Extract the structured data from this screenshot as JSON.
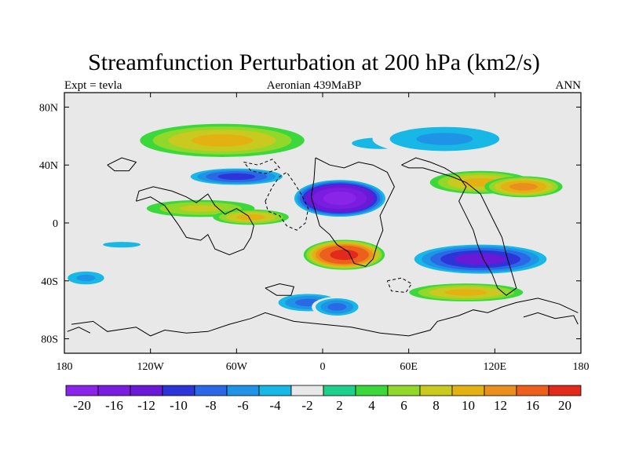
{
  "title": "Streamfunction Perturbation at 200 hPa (km2/s)",
  "subtitle_left": "Expt = tevla",
  "subtitle_center": "Aeronian 439MaBP",
  "subtitle_right": "ANN",
  "map": {
    "lon_range": [
      -180,
      180
    ],
    "lat_range": [
      -90,
      90
    ],
    "background_color": "#e8e8e8",
    "x_ticks": [
      {
        "value": -180,
        "label": "180"
      },
      {
        "value": -120,
        "label": "120W"
      },
      {
        "value": -60,
        "label": "60W"
      },
      {
        "value": 0,
        "label": "0"
      },
      {
        "value": 60,
        "label": "60E"
      },
      {
        "value": 120,
        "label": "120E"
      },
      {
        "value": 180,
        "label": "180"
      }
    ],
    "y_ticks": [
      {
        "value": 80,
        "label": "80N"
      },
      {
        "value": 40,
        "label": "40N"
      },
      {
        "value": 0,
        "label": "0"
      },
      {
        "value": -40,
        "label": "40S"
      },
      {
        "value": -80,
        "label": "80S"
      }
    ],
    "anomalies": [
      {
        "lon": -70,
        "lat": 57,
        "rx": 65,
        "ry": 13,
        "value": 8
      },
      {
        "lon": 40,
        "lat": 55,
        "rx": 60,
        "ry": 12,
        "value": -4
      },
      {
        "lon": 85,
        "lat": 58,
        "rx": 60,
        "ry": 13,
        "value": -6
      },
      {
        "lon": -60,
        "lat": 32,
        "rx": 40,
        "ry": 7,
        "value": -10
      },
      {
        "lon": 12,
        "lat": 17,
        "rx": 35,
        "ry": 14,
        "value": -20
      },
      {
        "lon": 110,
        "lat": 28,
        "rx": 40,
        "ry": 9,
        "value": 8
      },
      {
        "lon": 140,
        "lat": 25,
        "rx": 30,
        "ry": 8,
        "value": 10
      },
      {
        "lon": -85,
        "lat": 10,
        "rx": 45,
        "ry": 7,
        "value": 6
      },
      {
        "lon": -50,
        "lat": 4,
        "rx": 30,
        "ry": 6,
        "value": 8
      },
      {
        "lon": 15,
        "lat": -22,
        "rx": 30,
        "ry": 11,
        "value": 16
      },
      {
        "lon": -140,
        "lat": -15,
        "rx": 40,
        "ry": 6,
        "value": -4
      },
      {
        "lon": 110,
        "lat": -25,
        "rx": 55,
        "ry": 12,
        "value": -12
      },
      {
        "lon": -165,
        "lat": -38,
        "rx": 20,
        "ry": 7,
        "value": -6
      },
      {
        "lon": 100,
        "lat": -48,
        "rx": 45,
        "ry": 7,
        "value": 8
      },
      {
        "lon": -10,
        "lat": -55,
        "rx": 28,
        "ry": 8,
        "value": -8
      },
      {
        "lon": 10,
        "lat": -58,
        "rx": 20,
        "ry": 8,
        "value": -8
      }
    ],
    "coastlines": [
      [
        [
          -175,
          -70
        ],
        [
          -160,
          -68
        ],
        [
          -150,
          -75
        ],
        [
          -130,
          -72
        ],
        [
          -120,
          -78
        ],
        [
          -110,
          -74
        ],
        [
          -95,
          -76
        ],
        [
          -80,
          -75
        ],
        [
          -65,
          -70
        ],
        [
          -50,
          -66
        ],
        [
          -40,
          -62
        ],
        [
          -20,
          -68
        ],
        [
          0,
          -70
        ],
        [
          20,
          -72
        ],
        [
          40,
          -76
        ],
        [
          60,
          -78
        ],
        [
          75,
          -74
        ],
        [
          80,
          -68
        ],
        [
          95,
          -64
        ],
        [
          105,
          -60
        ],
        [
          115,
          -62
        ],
        [
          125,
          -58
        ],
        [
          135,
          -55
        ],
        [
          150,
          -52
        ],
        [
          165,
          -56
        ],
        [
          178,
          -62
        ]
      ],
      [
        [
          -130,
          15
        ],
        [
          -120,
          18
        ],
        [
          -110,
          12
        ],
        [
          -105,
          5
        ],
        [
          -100,
          -2
        ],
        [
          -95,
          -10
        ],
        [
          -85,
          -12
        ],
        [
          -80,
          -8
        ],
        [
          -75,
          -18
        ],
        [
          -65,
          -22
        ],
        [
          -55,
          -18
        ],
        [
          -50,
          -10
        ],
        [
          -48,
          -2
        ],
        [
          -52,
          5
        ],
        [
          -60,
          10
        ],
        [
          -68,
          6
        ],
        [
          -75,
          12
        ],
        [
          -80,
          20
        ],
        [
          -88,
          14
        ],
        [
          -95,
          18
        ],
        [
          -105,
          22
        ],
        [
          -118,
          25
        ],
        [
          -128,
          22
        ],
        [
          -130,
          15
        ]
      ],
      [
        [
          -40,
          15
        ],
        [
          -35,
          25
        ],
        [
          -30,
          32
        ],
        [
          -25,
          35
        ],
        [
          -20,
          28
        ],
        [
          -15,
          20
        ],
        [
          -10,
          10
        ],
        [
          -12,
          0
        ],
        [
          -18,
          -5
        ],
        [
          -25,
          -2
        ],
        [
          -30,
          5
        ],
        [
          -38,
          8
        ],
        [
          -40,
          15
        ]
      ],
      [
        [
          -5,
          45
        ],
        [
          5,
          40
        ],
        [
          15,
          38
        ],
        [
          25,
          42
        ],
        [
          35,
          40
        ],
        [
          45,
          35
        ],
        [
          50,
          25
        ],
        [
          45,
          15
        ],
        [
          40,
          5
        ],
        [
          42,
          -5
        ],
        [
          38,
          -15
        ],
        [
          35,
          -25
        ],
        [
          30,
          -30
        ],
        [
          22,
          -28
        ],
        [
          18,
          -20
        ],
        [
          10,
          -15
        ],
        [
          5,
          -8
        ],
        [
          -2,
          -2
        ],
        [
          -5,
          8
        ],
        [
          -8,
          18
        ],
        [
          -6,
          30
        ],
        [
          -5,
          45
        ]
      ],
      [
        [
          55,
          40
        ],
        [
          65,
          45
        ],
        [
          75,
          42
        ],
        [
          85,
          38
        ],
        [
          95,
          32
        ],
        [
          100,
          25
        ],
        [
          95,
          15
        ],
        [
          100,
          5
        ],
        [
          105,
          -5
        ],
        [
          108,
          -15
        ],
        [
          112,
          -25
        ],
        [
          118,
          -35
        ],
        [
          122,
          -45
        ],
        [
          128,
          -50
        ],
        [
          135,
          -45
        ],
        [
          132,
          -35
        ],
        [
          128,
          -22
        ],
        [
          125,
          -10
        ],
        [
          120,
          0
        ],
        [
          115,
          10
        ],
        [
          110,
          20
        ],
        [
          100,
          28
        ],
        [
          90,
          32
        ],
        [
          80,
          35
        ],
        [
          70,
          38
        ],
        [
          60,
          38
        ],
        [
          55,
          40
        ]
      ],
      [
        [
          -55,
          42
        ],
        [
          -45,
          40
        ],
        [
          -35,
          44
        ],
        [
          -30,
          38
        ],
        [
          -40,
          34
        ],
        [
          -50,
          36
        ],
        [
          -55,
          42
        ]
      ],
      [
        [
          -150,
          40
        ],
        [
          -140,
          45
        ],
        [
          -130,
          42
        ],
        [
          -135,
          36
        ],
        [
          -145,
          36
        ],
        [
          -150,
          40
        ]
      ],
      [
        [
          -40,
          -45
        ],
        [
          -30,
          -42
        ],
        [
          -20,
          -44
        ],
        [
          -22,
          -50
        ],
        [
          -32,
          -50
        ],
        [
          -40,
          -45
        ]
      ],
      [
        [
          45,
          -40
        ],
        [
          55,
          -38
        ],
        [
          62,
          -42
        ],
        [
          58,
          -48
        ],
        [
          48,
          -47
        ],
        [
          45,
          -40
        ]
      ],
      [
        [
          140,
          -65
        ],
        [
          150,
          -62
        ],
        [
          162,
          -66
        ],
        [
          175,
          -64
        ],
        [
          178,
          -70
        ]
      ],
      [
        [
          -178,
          -75
        ],
        [
          -170,
          -72
        ],
        [
          -162,
          -76
        ]
      ]
    ]
  },
  "colorbar": {
    "colors": [
      "#8a24e8",
      "#7b1de0",
      "#6a1ad6",
      "#2d35d8",
      "#2b68e6",
      "#1f94e6",
      "#17b7e6",
      "#e8e8e8",
      "#1fcf8c",
      "#3bd83b",
      "#92d82b",
      "#c9c91f",
      "#e4b113",
      "#ea8e1e",
      "#ec5f1c",
      "#e22a1c"
    ],
    "labels": [
      "-20",
      "-16",
      "-12",
      "-10",
      "-8",
      "-6",
      "-4",
      "-2",
      "2",
      "4",
      "6",
      "8",
      "10",
      "12",
      "16",
      "20"
    ]
  }
}
